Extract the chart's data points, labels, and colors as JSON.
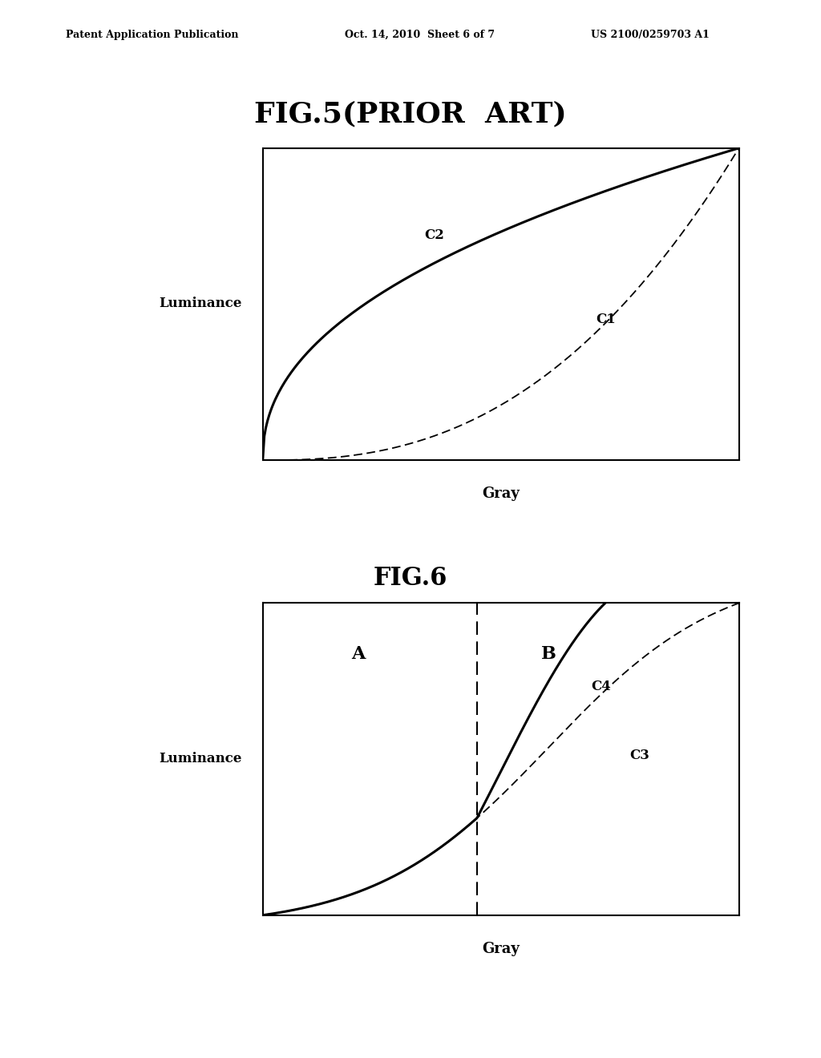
{
  "background_color": "#ffffff",
  "header_left": "Patent Application Publication",
  "header_center": "Oct. 14, 2010  Sheet 6 of 7",
  "header_right": "US 2100/0259703 A1",
  "fig5_title": "FIG.5(PRIOR  ART)",
  "fig6_title": "FIG.6",
  "ylabel": "Luminance",
  "xlabel": "Gray",
  "fig5_label_C2": "C2",
  "fig5_label_C1": "C1",
  "fig6_label_A": "A",
  "fig6_label_B": "B",
  "fig6_label_C4": "C4",
  "fig6_label_C3": "C3"
}
